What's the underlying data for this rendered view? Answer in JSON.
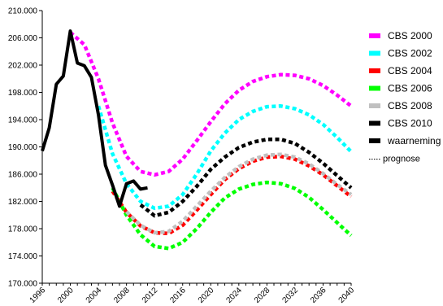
{
  "chart_data": {
    "type": "line",
    "title": "",
    "xlabel": "",
    "ylabel": "",
    "xlim": [
      1996,
      2040
    ],
    "ylim": [
      170000,
      210000
    ],
    "grid": false,
    "legend_position": "right",
    "x_ticks": [
      1996,
      2000,
      2004,
      2008,
      2012,
      2016,
      2020,
      2024,
      2028,
      2032,
      2036,
      2040
    ],
    "y_ticks": [
      170000,
      174000,
      178000,
      182000,
      186000,
      190000,
      194000,
      198000,
      202000,
      206000,
      210000
    ],
    "x_tick_labels": [
      "1996",
      "2000",
      "2004",
      "2008",
      "2012",
      "2016",
      "2020",
      "2024",
      "2028",
      "2032",
      "2036",
      "2040"
    ],
    "y_tick_labels": [
      "170.000",
      "174.000",
      "178.000",
      "182.000",
      "186.000",
      "190.000",
      "194.000",
      "198.000",
      "202.000",
      "206.000",
      "210.000"
    ],
    "series": [
      {
        "name": "CBS 2000",
        "color": "#ff00ff",
        "style": "dotted",
        "x": [
          2000,
          2002,
          2004,
          2006,
          2008,
          2010,
          2012,
          2014,
          2016,
          2018,
          2020,
          2022,
          2024,
          2026,
          2028,
          2030,
          2032,
          2034,
          2036,
          2038,
          2040
        ],
        "y": [
          206800,
          205000,
          200000,
          193500,
          188600,
          186400,
          185900,
          186400,
          188200,
          190900,
          193700,
          196300,
          198300,
          199600,
          200300,
          200600,
          200500,
          200000,
          199000,
          197600,
          196000
        ]
      },
      {
        "name": "CBS 2002",
        "color": "#00ffff",
        "style": "dotted",
        "x": [
          2004,
          2006,
          2008,
          2010,
          2012,
          2014,
          2016,
          2018,
          2020,
          2022,
          2024,
          2026,
          2028,
          2030,
          2032,
          2034,
          2036,
          2038,
          2040
        ],
        "y": [
          196000,
          189000,
          184600,
          182000,
          181000,
          181300,
          183000,
          186000,
          189400,
          192000,
          194000,
          195200,
          195900,
          196000,
          195600,
          194700,
          193300,
          191400,
          189300
        ]
      },
      {
        "name": "CBS 2004",
        "color": "#ff0000",
        "style": "dotted",
        "x": [
          2006,
          2008,
          2010,
          2012,
          2014,
          2016,
          2018,
          2020,
          2022,
          2024,
          2026,
          2028,
          2030,
          2032,
          2034,
          2036,
          2038,
          2040
        ],
        "y": [
          183500,
          180400,
          178400,
          177400,
          177300,
          178500,
          180700,
          183000,
          185200,
          186800,
          187900,
          188500,
          188600,
          188200,
          187200,
          185900,
          184300,
          182700
        ]
      },
      {
        "name": "CBS 2006",
        "color": "#00ff00",
        "style": "dotted",
        "x": [
          2006,
          2008,
          2010,
          2012,
          2014,
          2016,
          2018,
          2020,
          2022,
          2024,
          2026,
          2028,
          2030,
          2032,
          2034,
          2036,
          2038,
          2040
        ],
        "y": [
          184000,
          180000,
          177100,
          175400,
          175100,
          176000,
          178000,
          180400,
          182500,
          183800,
          184500,
          184800,
          184600,
          183900,
          182600,
          180800,
          178900,
          177000
        ]
      },
      {
        "name": "CBS 2008",
        "color": "#c0c0c0",
        "style": "dotted",
        "x": [
          2008,
          2010,
          2012,
          2014,
          2016,
          2018,
          2020,
          2022,
          2024,
          2026,
          2028,
          2030,
          2032,
          2034,
          2036,
          2038,
          2040
        ],
        "y": [
          180500,
          178500,
          177400,
          177600,
          179100,
          181300,
          183500,
          185500,
          187100,
          188200,
          188800,
          188900,
          188500,
          187500,
          186100,
          184500,
          183000
        ]
      },
      {
        "name": "CBS 2010",
        "color": "#000000",
        "style": "dotted",
        "x": [
          2010,
          2012,
          2014,
          2016,
          2018,
          2020,
          2022,
          2024,
          2026,
          2028,
          2030,
          2032,
          2034,
          2036,
          2038,
          2040
        ],
        "y": [
          181500,
          179900,
          180400,
          182000,
          184200,
          186700,
          188500,
          189900,
          190700,
          191100,
          191100,
          190500,
          189200,
          187600,
          185800,
          184000
        ]
      },
      {
        "name": "waarneming",
        "color": "#000000",
        "style": "solid",
        "x": [
          1996,
          1997,
          1998,
          1999,
          2000,
          2001,
          2002,
          2003,
          2004,
          2005,
          2006,
          2007,
          2008,
          2009,
          2010,
          2011
        ],
        "y": [
          189400,
          192800,
          199200,
          200400,
          207000,
          202300,
          201900,
          200200,
          194700,
          187300,
          184400,
          181300,
          184600,
          185000,
          183800,
          184000
        ]
      }
    ],
    "legend_note": "prognose"
  }
}
